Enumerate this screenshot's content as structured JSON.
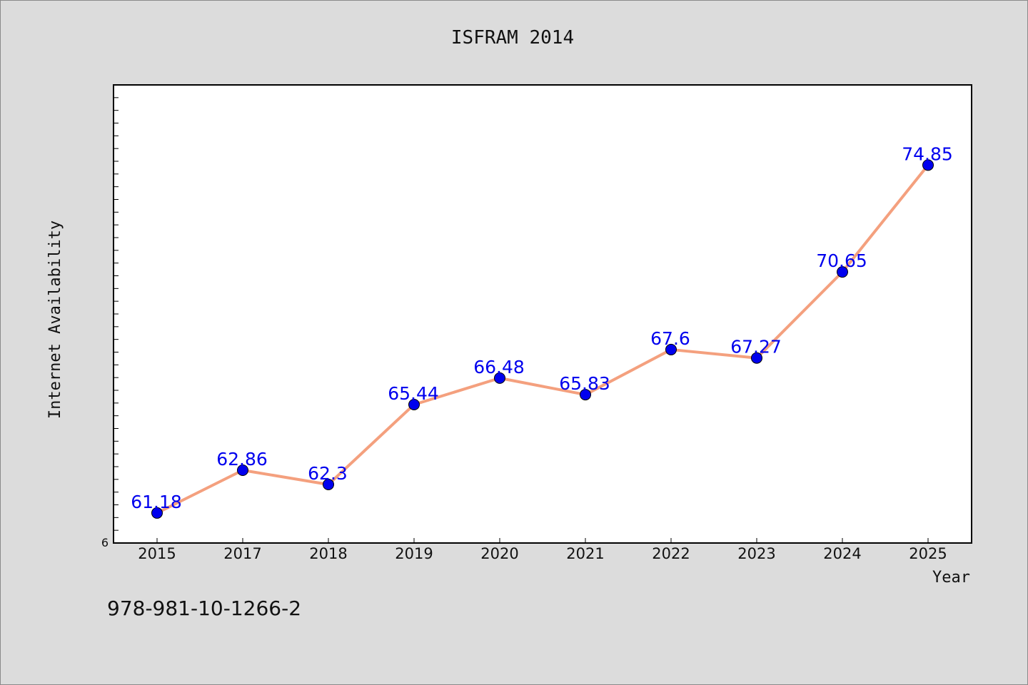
{
  "chart_data": {
    "type": "line",
    "title": "ISFRAM 2014",
    "xlabel": "Year",
    "ylabel": "Internet Availability",
    "categories": [
      "2015",
      "2017",
      "2018",
      "2019",
      "2020",
      "2021",
      "2022",
      "2023",
      "2024",
      "2025"
    ],
    "series": [
      {
        "values": [
          61.18,
          62.86,
          62.3,
          65.44,
          66.48,
          65.83,
          67.6,
          67.27,
          70.65,
          74.85
        ],
        "data_labels": [
          "61.18",
          "62.86",
          "62.3",
          "65.44",
          "66.48",
          "65.83",
          "67.6",
          "67.27",
          "70.65",
          "74.85"
        ]
      }
    ],
    "yaxis_tick_label": "6",
    "ylim": [
      60,
      78
    ],
    "grid": false,
    "line_color": "#f4a07e",
    "marker_color": "#0000ee",
    "label_color": "#0000ee"
  },
  "footer": {
    "isbn": "978-981-10-1266-2"
  }
}
